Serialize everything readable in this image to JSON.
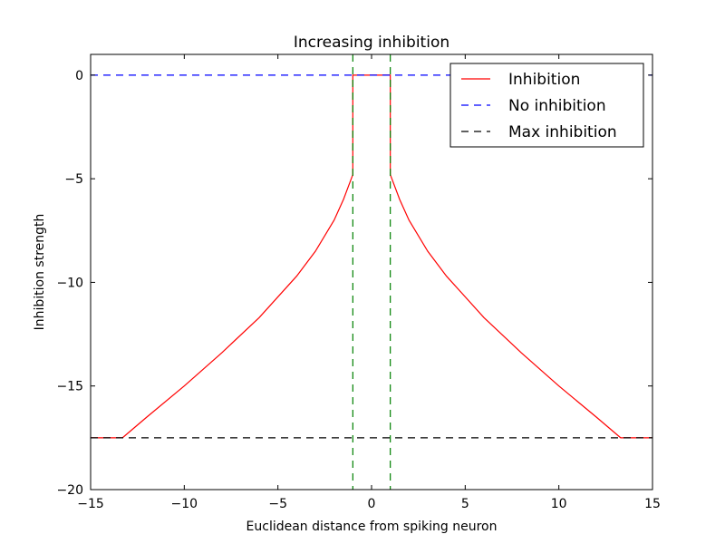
{
  "chart_data": {
    "type": "line",
    "title": "Increasing inhibition",
    "xlabel": "Euclidean distance from spiking neuron",
    "ylabel": "Inhibition strength",
    "xlim": [
      -15,
      15
    ],
    "ylim": [
      -20,
      1
    ],
    "xticks": [
      -15,
      -10,
      -5,
      0,
      5,
      10,
      15
    ],
    "xtick_labels": [
      "−15",
      "−10",
      "−5",
      "0",
      "5",
      "10",
      "15"
    ],
    "yticks": [
      -20,
      -15,
      -10,
      -5,
      0
    ],
    "ytick_labels": [
      "−20",
      "−15",
      "−10",
      "−5",
      "0"
    ],
    "grid": false,
    "legend_position": "top-right",
    "series": [
      {
        "name": "Inhibition",
        "color": "#ff0000",
        "style": "solid",
        "x": [
          -15,
          -13.3,
          -12,
          -10,
          -8,
          -6,
          -4,
          -3,
          -2,
          -1.5,
          -1,
          -1,
          1,
          1,
          1.5,
          2,
          3,
          4,
          6,
          8,
          10,
          12,
          13.3,
          15
        ],
        "y": [
          -17.5,
          -17.5,
          -16.5,
          -15.0,
          -13.4,
          -11.7,
          -9.7,
          -8.5,
          -7.0,
          -6.0,
          -4.8,
          0,
          0,
          -4.8,
          -6.0,
          -7.0,
          -8.5,
          -9.7,
          -11.7,
          -13.4,
          -15.0,
          -16.5,
          -17.5,
          -17.5
        ]
      },
      {
        "name": "No inhibition",
        "color": "#0000ff",
        "style": "dashed",
        "x": [
          -15,
          15
        ],
        "y": [
          0,
          0
        ]
      },
      {
        "name": "Max inhibition",
        "color": "#000000",
        "style": "dashed",
        "x": [
          -15,
          15
        ],
        "y": [
          -17.5,
          -17.5
        ]
      }
    ],
    "vlines": [
      {
        "x": -1,
        "color": "#008000",
        "style": "dashed"
      },
      {
        "x": 1,
        "color": "#008000",
        "style": "dashed"
      }
    ]
  }
}
